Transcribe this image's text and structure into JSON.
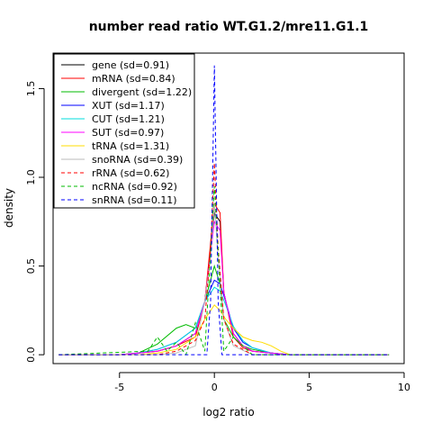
{
  "chart_data": {
    "type": "line",
    "title": "number read ratio WT.G1.2/mre11.G1.1",
    "xlabel": "log2 ratio",
    "ylabel": "density",
    "xlim": [
      -8.5,
      10
    ],
    "ylim": [
      -0.05,
      1.7
    ],
    "xticks": [
      -5,
      0,
      5,
      10
    ],
    "yticks": [
      0.0,
      0.5,
      1.0,
      1.5
    ],
    "xtick_labels": [
      "-5",
      "0",
      "5",
      "10"
    ],
    "ytick_labels": [
      "0.0",
      "0.5",
      "1.0",
      "1.5"
    ],
    "grid": false,
    "legend_position": "top-left",
    "series": [
      {
        "name": "gene (sd=0.91)",
        "color": "#000000",
        "dash": "solid",
        "x": [
          -8.2,
          -5,
          -4,
          -3,
          -2,
          -1,
          -0.5,
          0,
          0.3,
          0.5,
          1,
          1.5,
          2,
          3,
          4,
          5,
          9.2
        ],
        "y": [
          0,
          0,
          0.01,
          0.02,
          0.05,
          0.12,
          0.3,
          0.8,
          0.75,
          0.35,
          0.12,
          0.05,
          0.02,
          0.01,
          0,
          0,
          0
        ]
      },
      {
        "name": "mRNA (sd=0.84)",
        "color": "#ff0000",
        "dash": "solid",
        "x": [
          -8.2,
          -5,
          -4,
          -3,
          -2,
          -1,
          -0.5,
          0,
          0.3,
          0.5,
          1,
          1.5,
          2,
          3,
          4,
          5,
          9.2
        ],
        "y": [
          0,
          0,
          0.01,
          0.02,
          0.05,
          0.1,
          0.3,
          0.85,
          0.8,
          0.35,
          0.1,
          0.04,
          0.02,
          0.01,
          0,
          0,
          0
        ]
      },
      {
        "name": "divergent (sd=1.22)",
        "color": "#00bb00",
        "dash": "solid",
        "x": [
          -8.2,
          -5,
          -4,
          -3,
          -2,
          -1.5,
          -1,
          -0.5,
          0,
          0.3,
          0.5,
          1,
          1.5,
          2,
          3,
          4,
          9.2
        ],
        "y": [
          0,
          0,
          0.01,
          0.06,
          0.15,
          0.17,
          0.15,
          0.3,
          0.5,
          0.4,
          0.2,
          0.1,
          0.05,
          0.03,
          0.01,
          0,
          0
        ]
      },
      {
        "name": "XUT (sd=1.17)",
        "color": "#0000ff",
        "dash": "solid",
        "x": [
          -8.2,
          -5,
          -4,
          -3,
          -2,
          -1,
          -0.5,
          0,
          0.3,
          0.6,
          1,
          1.5,
          2,
          3,
          4,
          9.2
        ],
        "y": [
          0,
          0,
          0.01,
          0.03,
          0.07,
          0.15,
          0.3,
          0.42,
          0.4,
          0.3,
          0.15,
          0.07,
          0.04,
          0.01,
          0,
          0
        ]
      },
      {
        "name": "CUT (sd=1.21)",
        "color": "#00dddd",
        "dash": "solid",
        "x": [
          -8.2,
          -5,
          -4,
          -3,
          -2,
          -1,
          -0.5,
          0,
          0.3,
          0.6,
          1,
          1.5,
          2,
          3,
          4,
          9.2
        ],
        "y": [
          0,
          0,
          0.01,
          0.03,
          0.07,
          0.15,
          0.3,
          0.38,
          0.36,
          0.28,
          0.16,
          0.08,
          0.04,
          0.01,
          0,
          0
        ]
      },
      {
        "name": "SUT (sd=0.97)",
        "color": "#ff00ff",
        "dash": "solid",
        "x": [
          -8.2,
          -5,
          -4,
          -3,
          -2,
          -1,
          -0.5,
          0,
          0.3,
          0.5,
          1,
          1.5,
          2,
          3,
          4,
          9.2
        ],
        "y": [
          0,
          0,
          0.01,
          0.02,
          0.05,
          0.12,
          0.3,
          0.75,
          0.7,
          0.35,
          0.12,
          0.05,
          0.02,
          0.01,
          0,
          0
        ]
      },
      {
        "name": "tRNA (sd=1.31)",
        "color": "#ffdd00",
        "dash": "solid",
        "x": [
          -8.2,
          -5,
          -4,
          -3,
          -2,
          -1,
          -0.5,
          0,
          0.3,
          0.6,
          1,
          1.5,
          2,
          2.5,
          3,
          3.5,
          4,
          9.2
        ],
        "y": [
          0,
          0,
          0,
          0.01,
          0.03,
          0.1,
          0.2,
          0.28,
          0.25,
          0.2,
          0.15,
          0.1,
          0.08,
          0.07,
          0.05,
          0.02,
          0,
          0
        ]
      },
      {
        "name": "snoRNA (sd=0.39)",
        "color": "#bbbbbb",
        "dash": "solid",
        "x": [
          -8.2,
          -3,
          -2,
          -1,
          -0.5,
          -0.2,
          0,
          0.2,
          0.5,
          1,
          2,
          9.2
        ],
        "y": [
          0,
          0,
          0.01,
          0.05,
          0.3,
          0.55,
          0.85,
          0.55,
          0.2,
          0.05,
          0,
          0
        ]
      },
      {
        "name": "rRNA (sd=0.62)",
        "color": "#ff0000",
        "dash": "dashed",
        "x": [
          -8.2,
          -3,
          -2,
          -1,
          -0.5,
          -0.2,
          0,
          0.2,
          0.5,
          1,
          2,
          9.2
        ],
        "y": [
          0,
          0,
          0.02,
          0.08,
          0.2,
          0.6,
          1.08,
          0.6,
          0.2,
          0.06,
          0,
          0
        ]
      },
      {
        "name": "ncRNA (sd=0.92)",
        "color": "#00bb00",
        "dash": "dashed",
        "x": [
          -8.2,
          -3.5,
          -3,
          -2.5,
          -2,
          -1.5,
          -1,
          -0.5,
          0,
          0.5,
          1,
          2,
          9.2
        ],
        "y": [
          0,
          0.02,
          0.1,
          0.02,
          0.07,
          0,
          0.18,
          0.02,
          0.95,
          0.02,
          0.1,
          0,
          0
        ]
      },
      {
        "name": "snRNA (sd=0.11)",
        "color": "#0000ff",
        "dash": "dashed",
        "x": [
          -8.2,
          -1,
          -0.4,
          -0.2,
          0,
          0.2,
          0.4,
          0.8,
          9.2
        ],
        "y": [
          0,
          0,
          0,
          0.3,
          1.63,
          0.3,
          0,
          0,
          0
        ]
      }
    ]
  }
}
